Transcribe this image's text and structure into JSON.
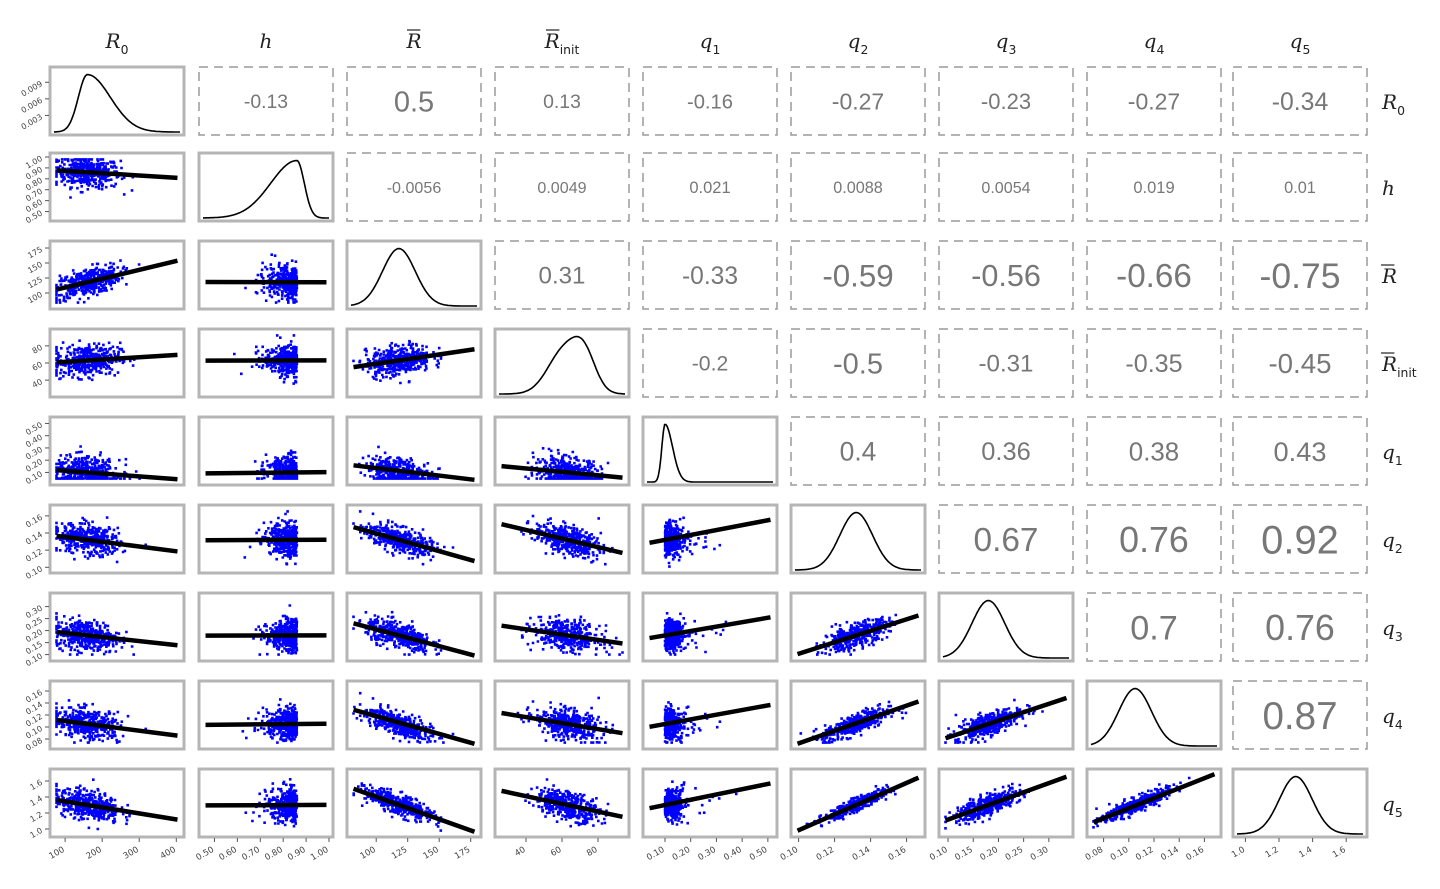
{
  "chart_data": {
    "type": "scatter-matrix",
    "variables": [
      {
        "id": "R0",
        "label": "R",
        "sub": "0",
        "bar": false,
        "range": [
          70,
          410
        ],
        "ticks": [
          100,
          200,
          300,
          400
        ],
        "tick_labels": [
          "100",
          "200",
          "300",
          "400"
        ],
        "mean": 160
      },
      {
        "id": "h",
        "label": "h",
        "sub": "",
        "bar": false,
        "range": [
          0.45,
          1.0
        ],
        "ticks": [
          0.5,
          0.6,
          0.7,
          0.8,
          0.9,
          1.0
        ],
        "tick_labels": [
          "0.50",
          "0.60",
          "0.70",
          "0.80",
          "0.90",
          "1.00"
        ],
        "mean": 0.86
      },
      {
        "id": "Rbar",
        "label": "R",
        "sub": "",
        "bar": true,
        "range": [
          80,
          180
        ],
        "ticks": [
          100,
          125,
          150,
          175
        ],
        "tick_labels": [
          "100",
          "125",
          "150",
          "175"
        ],
        "mean": 118
      },
      {
        "id": "Rinit",
        "label": "R",
        "sub": "init",
        "bar": true,
        "range": [
          25,
          95
        ],
        "ticks": [
          40,
          60,
          80
        ],
        "tick_labels": [
          "40",
          "60",
          "80"
        ],
        "mean": 63
      },
      {
        "id": "q1",
        "label": "q",
        "sub": "1",
        "bar": false,
        "range": [
          0.03,
          0.52
        ],
        "ticks": [
          0.1,
          0.2,
          0.3,
          0.4,
          0.5
        ],
        "tick_labels": [
          "0.10",
          "0.20",
          "0.30",
          "0.40",
          "0.50"
        ],
        "mean": 0.1
      },
      {
        "id": "q2",
        "label": "q",
        "sub": "2",
        "bar": false,
        "range": [
          0.098,
          0.168
        ],
        "ticks": [
          0.1,
          0.12,
          0.14,
          0.16
        ],
        "tick_labels": [
          "0.10",
          "0.12",
          "0.14",
          "0.16"
        ],
        "mean": 0.132
      },
      {
        "id": "q3",
        "label": "q",
        "sub": "3",
        "bar": false,
        "range": [
          0.09,
          0.34
        ],
        "ticks": [
          0.1,
          0.15,
          0.2,
          0.25,
          0.3
        ],
        "tick_labels": [
          "0.10",
          "0.15",
          "0.20",
          "0.25",
          "0.30"
        ],
        "mean": 0.18
      },
      {
        "id": "q4",
        "label": "q",
        "sub": "4",
        "bar": false,
        "range": [
          0.07,
          0.17
        ],
        "ticks": [
          0.08,
          0.1,
          0.12,
          0.14,
          0.16
        ],
        "tick_labels": [
          "0.08",
          "0.10",
          "0.12",
          "0.14",
          "0.16"
        ],
        "mean": 0.105
      },
      {
        "id": "q5",
        "label": "q",
        "sub": "5",
        "bar": false,
        "range": [
          0.95,
          1.7
        ],
        "ticks": [
          1.0,
          1.2,
          1.4,
          1.6
        ],
        "tick_labels": [
          "1.0",
          "1.2",
          "1.4",
          "1.6"
        ],
        "mean": 1.3
      }
    ],
    "density_y_ticks": [
      0.003,
      0.006,
      0.009
    ],
    "density_y_tick_labels": [
      "0.003",
      "0.006",
      "0.009"
    ],
    "correlation_labels": [
      {
        "row": 0,
        "col": 1,
        "value": -0.13,
        "text": "-0.13"
      },
      {
        "row": 0,
        "col": 2,
        "value": 0.5,
        "text": "0.5"
      },
      {
        "row": 0,
        "col": 3,
        "value": 0.13,
        "text": "0.13"
      },
      {
        "row": 0,
        "col": 4,
        "value": -0.16,
        "text": "-0.16"
      },
      {
        "row": 0,
        "col": 5,
        "value": -0.27,
        "text": "-0.27"
      },
      {
        "row": 0,
        "col": 6,
        "value": -0.23,
        "text": "-0.23"
      },
      {
        "row": 0,
        "col": 7,
        "value": -0.27,
        "text": "-0.27"
      },
      {
        "row": 0,
        "col": 8,
        "value": -0.34,
        "text": "-0.34"
      },
      {
        "row": 1,
        "col": 2,
        "value": -0.0056,
        "text": "-0.0056"
      },
      {
        "row": 1,
        "col": 3,
        "value": 0.0049,
        "text": "0.0049"
      },
      {
        "row": 1,
        "col": 4,
        "value": 0.021,
        "text": "0.021"
      },
      {
        "row": 1,
        "col": 5,
        "value": 0.0088,
        "text": "0.0088"
      },
      {
        "row": 1,
        "col": 6,
        "value": 0.0054,
        "text": "0.0054"
      },
      {
        "row": 1,
        "col": 7,
        "value": 0.019,
        "text": "0.019"
      },
      {
        "row": 1,
        "col": 8,
        "value": 0.01,
        "text": "0.01"
      },
      {
        "row": 2,
        "col": 3,
        "value": 0.31,
        "text": "0.31"
      },
      {
        "row": 2,
        "col": 4,
        "value": -0.33,
        "text": "-0.33"
      },
      {
        "row": 2,
        "col": 5,
        "value": -0.59,
        "text": "-0.59"
      },
      {
        "row": 2,
        "col": 6,
        "value": -0.56,
        "text": "-0.56"
      },
      {
        "row": 2,
        "col": 7,
        "value": -0.66,
        "text": "-0.66"
      },
      {
        "row": 2,
        "col": 8,
        "value": -0.75,
        "text": "-0.75"
      },
      {
        "row": 3,
        "col": 4,
        "value": -0.2,
        "text": "-0.2"
      },
      {
        "row": 3,
        "col": 5,
        "value": -0.5,
        "text": "-0.5"
      },
      {
        "row": 3,
        "col": 6,
        "value": -0.31,
        "text": "-0.31"
      },
      {
        "row": 3,
        "col": 7,
        "value": -0.35,
        "text": "-0.35"
      },
      {
        "row": 3,
        "col": 8,
        "value": -0.45,
        "text": "-0.45"
      },
      {
        "row": 4,
        "col": 5,
        "value": 0.4,
        "text": "0.4"
      },
      {
        "row": 4,
        "col": 6,
        "value": 0.36,
        "text": "0.36"
      },
      {
        "row": 4,
        "col": 7,
        "value": 0.38,
        "text": "0.38"
      },
      {
        "row": 4,
        "col": 8,
        "value": 0.43,
        "text": "0.43"
      },
      {
        "row": 5,
        "col": 6,
        "value": 0.67,
        "text": "0.67"
      },
      {
        "row": 5,
        "col": 7,
        "value": 0.76,
        "text": "0.76"
      },
      {
        "row": 5,
        "col": 8,
        "value": 0.92,
        "text": "0.92"
      },
      {
        "row": 6,
        "col": 7,
        "value": 0.7,
        "text": "0.7"
      },
      {
        "row": 6,
        "col": 8,
        "value": 0.76,
        "text": "0.76"
      },
      {
        "row": 7,
        "col": 8,
        "value": 0.87,
        "text": "0.87"
      }
    ],
    "colors": {
      "points": "#0000ff",
      "fit_line": "#000000",
      "density": "#000000",
      "correlation_text": "#777777",
      "panel_border": "#b5b5b5"
    }
  }
}
